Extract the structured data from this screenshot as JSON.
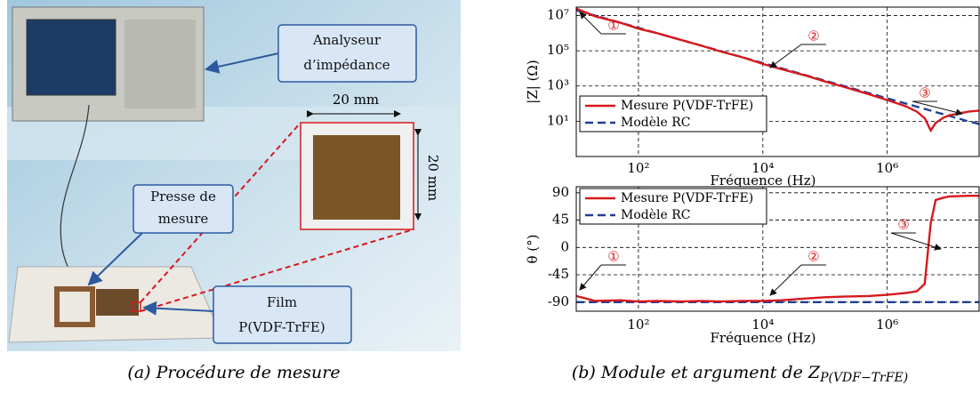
{
  "figure_a": {
    "callouts": [
      {
        "lines": [
          "Analyseur",
          "d’impédance"
        ]
      },
      {
        "lines": [
          "Presse de",
          "mesure"
        ]
      },
      {
        "lines": [
          "Film",
          "P(VDF-TrFE)"
        ]
      }
    ],
    "dimension_labels": [
      "20 mm",
      "20 mm"
    ],
    "caption": "(a) Procédure de mesure"
  },
  "figure_b": {
    "caption": "(b) Module et argument de ",
    "caption_symbol": "Z",
    "caption_subscript": "P(VDF−TrFE)"
  },
  "chart_data": [
    {
      "type": "line",
      "xscale": "log",
      "yscale": "log",
      "xlabel": "Fréquence (Hz)",
      "ylabel": "|Z| (Ω)",
      "xlim": [
        10,
        30000000
      ],
      "ylim": [
        0.1,
        30000000
      ],
      "xticks": [
        {
          "value": 100,
          "label": "10²"
        },
        {
          "value": 10000,
          "label": "10⁴"
        },
        {
          "value": 1000000,
          "label": "10⁶"
        }
      ],
      "yticks": [
        {
          "value": 10,
          "label": "10¹"
        },
        {
          "value": 1000,
          "label": "10³"
        },
        {
          "value": 100000,
          "label": "10⁵"
        },
        {
          "value": 10000000,
          "label": "10⁷"
        }
      ],
      "grid": true,
      "legend": "lower left",
      "annotations": [
        "①",
        "②",
        "③"
      ],
      "x": [
        10,
        20,
        50,
        100,
        200,
        500,
        1000,
        2000,
        5000,
        10000,
        20000,
        50000,
        100000,
        200000,
        500000,
        1000000,
        2000000,
        3000000,
        4000000,
        5000000,
        6000000,
        8000000,
        10000000,
        20000000,
        30000000
      ],
      "series": [
        {
          "name": "Mesure P(VDF-TrFE)",
          "color": "#d7191c",
          "line_style": "solid",
          "values": [
            25000000,
            9000000,
            4000000,
            1800000,
            1000000,
            400000,
            200000,
            95000,
            40000,
            18000,
            9000,
            3800,
            1800,
            900,
            350,
            160,
            70,
            35,
            15,
            3,
            8,
            16,
            22,
            35,
            40
          ]
        },
        {
          "name": "Modèle RC",
          "color": "#1f3f94",
          "line_style": "dashed",
          "values": [
            20000000,
            10000000,
            4000000,
            2000000,
            1000000,
            400000,
            200000,
            100000,
            40000,
            20000,
            10000,
            4000,
            2000,
            1000,
            400,
            200,
            100,
            67,
            50,
            40,
            33,
            25,
            20,
            10,
            7
          ]
        }
      ]
    },
    {
      "type": "line",
      "xscale": "log",
      "yscale": "linear",
      "xlabel": "Fréquence (Hz)",
      "ylabel": "θ (°)",
      "xlim": [
        10,
        30000000
      ],
      "ylim": [
        -105,
        100
      ],
      "xticks": [
        {
          "value": 100,
          "label": "10²"
        },
        {
          "value": 10000,
          "label": "10⁴"
        },
        {
          "value": 1000000,
          "label": "10⁶"
        }
      ],
      "yticks": [
        90,
        45,
        0,
        -45,
        -90
      ],
      "grid": true,
      "legend": "upper left",
      "annotations": [
        "③",
        "①",
        "②"
      ],
      "x": [
        10,
        20,
        50,
        100,
        200,
        500,
        1000,
        2000,
        5000,
        10000,
        20000,
        50000,
        100000,
        200000,
        500000,
        1000000,
        2000000,
        3000000,
        4000000,
        5000000,
        6000000,
        8000000,
        10000000,
        20000000,
        30000000
      ],
      "series": [
        {
          "name": "Mesure P(VDF-TrFE)",
          "color": "#d7191c",
          "line_style": "solid",
          "values": [
            -80,
            -88,
            -87,
            -89,
            -88,
            -89,
            -88,
            -89,
            -88,
            -88,
            -87,
            -84,
            -82,
            -81,
            -80,
            -78,
            -75,
            -72,
            -60,
            40,
            78,
            82,
            84,
            85,
            85
          ]
        },
        {
          "name": "Modèle RC",
          "color": "#1f3f94",
          "line_style": "dashed",
          "values": [
            -90,
            -90,
            -90,
            -90,
            -90,
            -90,
            -90,
            -90,
            -90,
            -90,
            -90,
            -90,
            -90,
            -90,
            -90,
            -90,
            -90,
            -90,
            -90,
            -90,
            -90,
            -90,
            -90,
            -90,
            -90
          ]
        }
      ]
    }
  ]
}
